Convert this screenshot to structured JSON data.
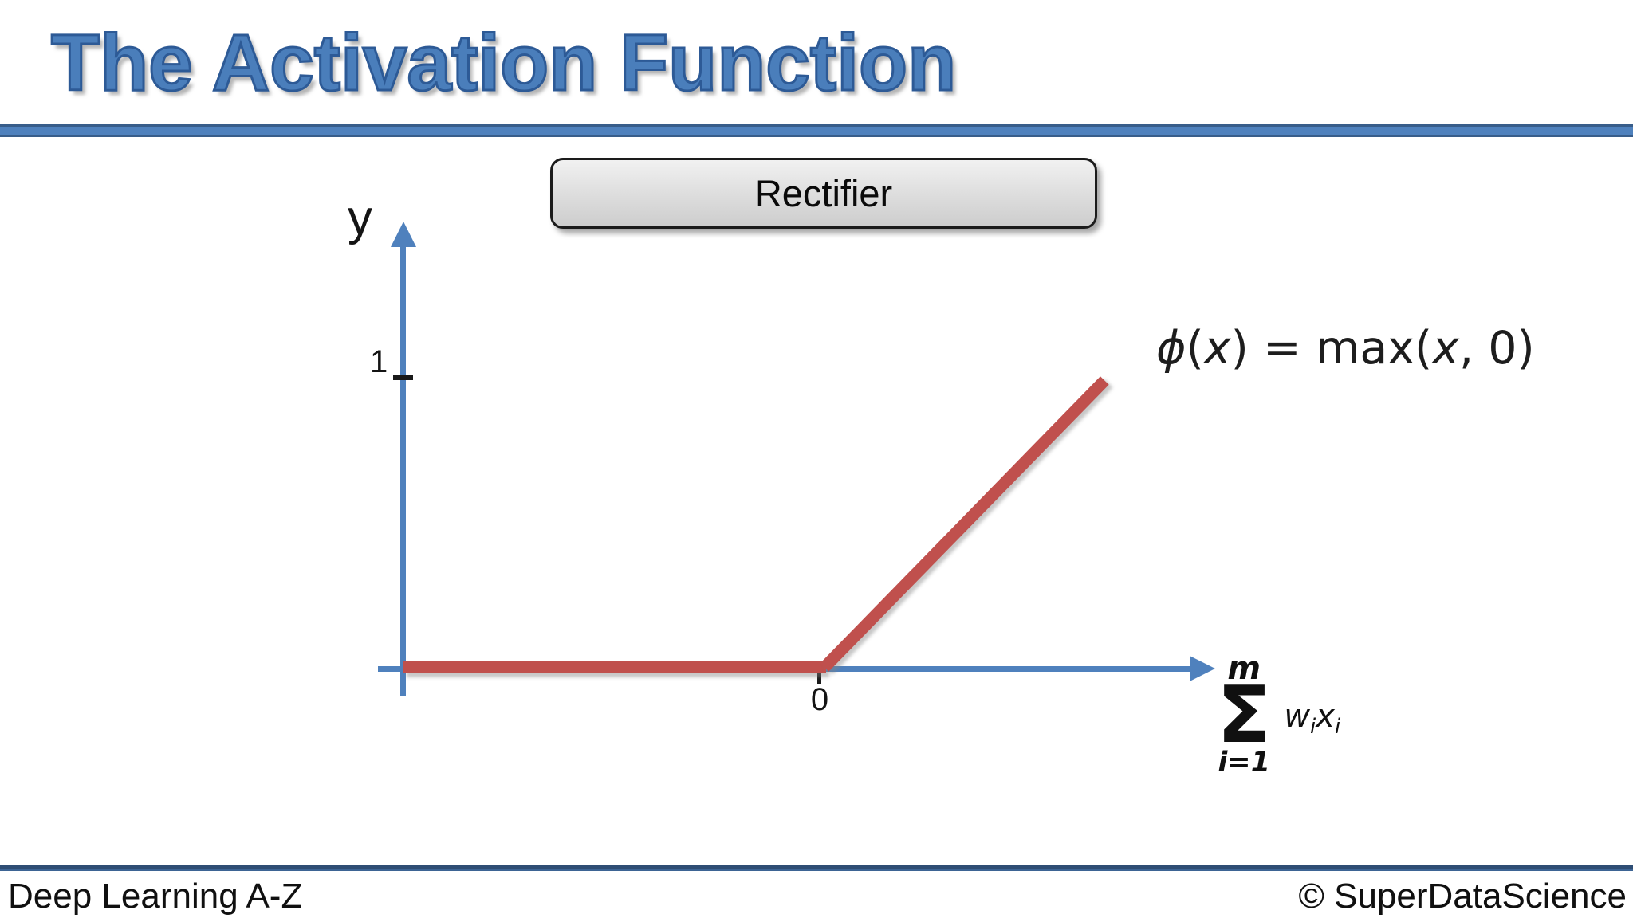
{
  "slide": {
    "title": "The Activation Function",
    "footer": {
      "left": "Deep Learning A-Z",
      "right": "© SuperDataScience"
    }
  },
  "header_label": {
    "text": "Rectifier"
  },
  "axes": {
    "y_label": "y",
    "y_tick_label": "1",
    "x_tick_label": "0"
  },
  "formula": {
    "phi": "ϕ",
    "open": "(",
    "arg": "x",
    "close_eq": ") = ",
    "func": "max",
    "open2": "(",
    "arg2": "x",
    "comma": ", ",
    "zero": "0",
    "close2": ")"
  },
  "sum": {
    "upper_limit": "m",
    "sigma": "Σ",
    "lower_limit": "i=1",
    "term_w": "w",
    "term_w_sub": "i",
    "term_x": "x",
    "term_x_sub": "i"
  },
  "colors": {
    "title_blue": "#4a7ebb",
    "title_outline_blue": "#2d5a96",
    "bar_blue": "#4f81bd",
    "bar_border_blue": "#385d8a",
    "axis_blue": "#4f81bd",
    "line_red": "#c0504d",
    "footer_bar_navy": "#2e4d74"
  },
  "chart_data": {
    "type": "line",
    "title": "Rectifier",
    "xlabel": "∑ i=1..m of wixi (weighted sum input)",
    "ylabel": "y",
    "x_ticks": [
      {
        "value": 0,
        "label": "0"
      }
    ],
    "y_ticks": [
      {
        "value": 1,
        "label": "1"
      }
    ],
    "xlim": [
      -1.5,
      1.3
    ],
    "ylim": [
      -0.1,
      1.6
    ],
    "grid": false,
    "legend": "none",
    "series": [
      {
        "name": "ϕ(x) = max(x, 0)",
        "color": "#c0504d",
        "points": [
          [
            -1.5,
            0
          ],
          [
            0,
            0
          ],
          [
            1,
            1
          ]
        ]
      }
    ],
    "annotations": [
      "ϕ(x) = max(x, 0)"
    ]
  }
}
